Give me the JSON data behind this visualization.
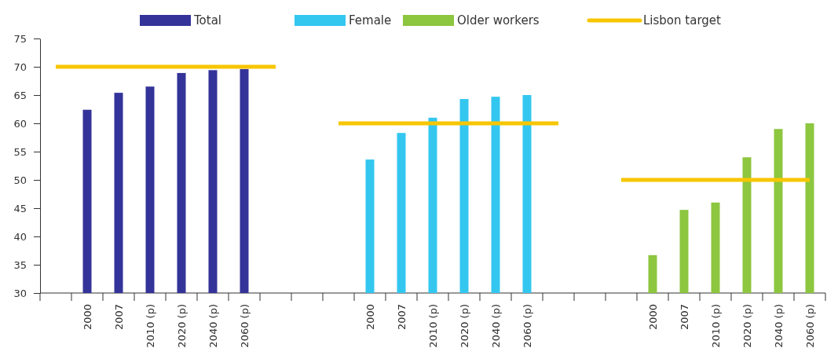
{
  "chart_data": {
    "type": "bar",
    "categories": [
      null,
      "2000",
      "2007",
      "2010 (p)",
      "2020 (p)",
      "2040 (p)",
      "2060 (p)",
      null,
      null,
      null,
      "2000",
      "2007",
      "2010 (p)",
      "2020 (p)",
      "2040 (p)",
      "2060 (p)",
      null,
      null,
      null,
      "2000",
      "2007",
      "2010 (p)",
      "2020 (p)",
      "2040 (p)",
      "2060 (p)"
    ],
    "series": [
      {
        "name": "Total",
        "color": "#333399",
        "values": [
          null,
          62.4,
          65.4,
          66.5,
          68.9,
          69.4,
          69.6,
          null,
          null,
          null,
          null,
          null,
          null,
          null,
          null,
          null,
          null,
          null,
          null,
          null,
          null,
          null,
          null,
          null,
          null
        ]
      },
      {
        "name": "Female",
        "color": "#33c7f0",
        "values": [
          null,
          null,
          null,
          null,
          null,
          null,
          null,
          null,
          null,
          null,
          53.6,
          58.3,
          61.0,
          64.3,
          64.7,
          65.0,
          null,
          null,
          null,
          null,
          null,
          null,
          null,
          null,
          null
        ]
      },
      {
        "name": "Older workers",
        "color": "#8dc63f",
        "values": [
          null,
          null,
          null,
          null,
          null,
          null,
          null,
          null,
          null,
          null,
          null,
          null,
          null,
          null,
          null,
          null,
          null,
          null,
          null,
          36.7,
          44.7,
          46.0,
          54.0,
          59.0,
          60.0
        ]
      },
      {
        "name": "Lisbon target",
        "type": "line",
        "color": "#f7c600",
        "values": [
          70,
          70,
          70,
          70,
          70,
          70,
          70,
          70,
          null,
          60,
          60,
          60,
          60,
          60,
          60,
          60,
          60,
          null,
          50,
          50,
          50,
          50,
          50,
          50,
          50
        ]
      }
    ],
    "ylim": [
      30,
      75
    ],
    "yticks": [
      30,
      35,
      40,
      45,
      50,
      55,
      60,
      65,
      70,
      75
    ],
    "grid": false,
    "legend": "top",
    "marker": "none",
    "line_style": "solid"
  }
}
